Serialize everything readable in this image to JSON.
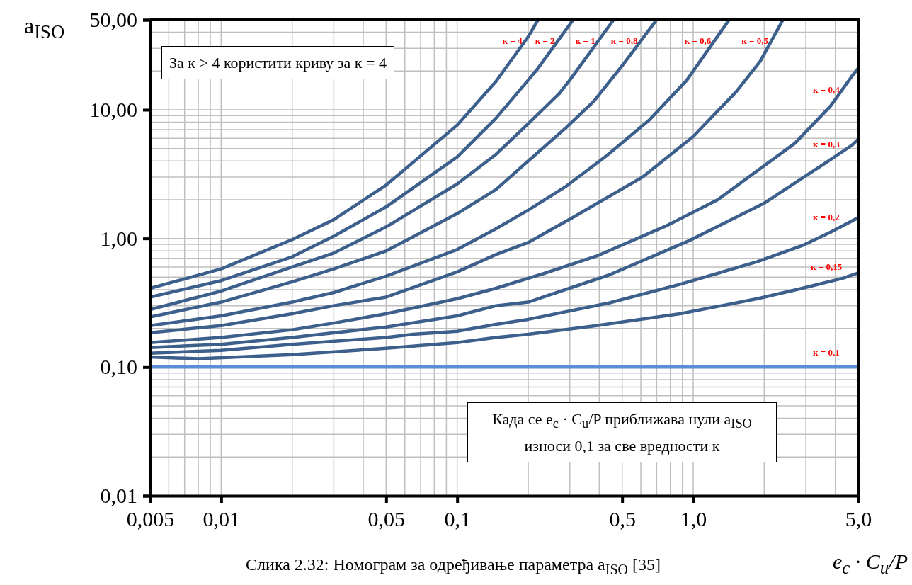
{
  "chart_data": {
    "type": "line",
    "xlabel": "e$_{c}$ · C$_{u}$/P",
    "ylabel": "a$_{ISO}$",
    "log": "xy",
    "grid": true,
    "xlim": [
      0.005,
      5
    ],
    "ylim": [
      0.01,
      50
    ],
    "xticks": [
      {
        "value": 0.005,
        "label": "0,005"
      },
      {
        "value": 0.01,
        "label": "0,01"
      },
      {
        "value": 0.05,
        "label": "0,05"
      },
      {
        "value": 0.1,
        "label": "0,1"
      },
      {
        "value": 0.5,
        "label": "0,5"
      },
      {
        "value": 1,
        "label": "1,0"
      },
      {
        "value": 5,
        "label": "5,0"
      }
    ],
    "yticks": [
      {
        "value": 0.01,
        "label": "0,01"
      },
      {
        "value": 0.1,
        "label": "0,10"
      },
      {
        "value": 1,
        "label": "1,00"
      },
      {
        "value": 10,
        "label": "10,00"
      },
      {
        "value": 50,
        "label": "50,00"
      }
    ],
    "series": [
      {
        "name": "к = 4",
        "color": "#3c5f8c",
        "x": [
          0.005,
          0.01,
          0.02,
          0.03,
          0.05,
          0.1,
          0.146,
          0.2,
          0.22
        ],
        "values": [
          0.41,
          0.58,
          0.98,
          1.4,
          2.6,
          7.6,
          16.6,
          37,
          50
        ]
      },
      {
        "name": "к = 2",
        "color": "#3c5f8c",
        "x": [
          0.005,
          0.01,
          0.02,
          0.03,
          0.05,
          0.1,
          0.146,
          0.2,
          0.22,
          0.31
        ],
        "values": [
          0.35,
          0.47,
          0.72,
          1.04,
          1.76,
          4.3,
          8.6,
          17,
          21,
          50
        ]
      },
      {
        "name": "к = 1",
        "color": "#3c5f8c",
        "x": [
          0.005,
          0.01,
          0.02,
          0.03,
          0.05,
          0.1,
          0.146,
          0.2,
          0.27,
          0.3,
          0.46
        ],
        "values": [
          0.28,
          0.39,
          0.6,
          0.77,
          1.23,
          2.65,
          4.5,
          7.8,
          13.3,
          17,
          50
        ]
      },
      {
        "name": "к = 0,8",
        "color": "#3c5f8c",
        "x": [
          0.005,
          0.01,
          0.02,
          0.03,
          0.05,
          0.1,
          0.146,
          0.2,
          0.29,
          0.38,
          0.5,
          0.7
        ],
        "values": [
          0.245,
          0.32,
          0.46,
          0.58,
          0.8,
          1.56,
          2.4,
          4.0,
          7.3,
          11.7,
          22,
          50
        ]
      },
      {
        "name": "к = 0,6",
        "color": "#3c5f8c",
        "x": [
          0.005,
          0.01,
          0.02,
          0.03,
          0.05,
          0.1,
          0.146,
          0.2,
          0.29,
          0.43,
          0.65,
          0.94,
          1.42
        ],
        "values": [
          0.21,
          0.25,
          0.32,
          0.38,
          0.51,
          0.82,
          1.19,
          1.66,
          2.55,
          4.4,
          8.3,
          17,
          50
        ]
      },
      {
        "name": "к = 0,5",
        "color": "#3c5f8c",
        "x": [
          0.005,
          0.01,
          0.02,
          0.03,
          0.05,
          0.1,
          0.146,
          0.2,
          0.31,
          0.61,
          1,
          1.52,
          1.92,
          2.4
        ],
        "values": [
          0.185,
          0.21,
          0.26,
          0.3,
          0.35,
          0.55,
          0.75,
          0.93,
          1.46,
          3.0,
          6.2,
          13.8,
          23.7,
          50
        ]
      },
      {
        "name": "к = 0,4",
        "color": "#3c5f8c",
        "x": [
          0.005,
          0.01,
          0.02,
          0.03,
          0.05,
          0.1,
          0.146,
          0.23,
          0.39,
          0.76,
          1.27,
          2.7,
          3.82,
          4.7,
          5
        ],
        "values": [
          0.155,
          0.17,
          0.195,
          0.22,
          0.26,
          0.34,
          0.41,
          0.53,
          0.73,
          1.24,
          2.0,
          5.5,
          10.7,
          18.2,
          21
        ]
      },
      {
        "name": "к = 0,3",
        "color": "#3c5f8c",
        "x": [
          0.005,
          0.01,
          0.02,
          0.05,
          0.1,
          0.146,
          0.2,
          0.44,
          0.96,
          2,
          3.66,
          4.7,
          5
        ],
        "values": [
          0.142,
          0.15,
          0.17,
          0.205,
          0.25,
          0.3,
          0.32,
          0.52,
          0.96,
          1.88,
          3.9,
          5.3,
          5.9
        ]
      },
      {
        "name": "к = 0,2",
        "color": "#3c5f8c",
        "x": [
          0.005,
          0.01,
          0.02,
          0.05,
          0.065,
          0.1,
          0.146,
          0.2,
          0.44,
          0.88,
          1.87,
          2.9,
          3.82,
          5
        ],
        "values": [
          0.128,
          0.135,
          0.15,
          0.17,
          0.18,
          0.19,
          0.215,
          0.235,
          0.315,
          0.44,
          0.66,
          0.88,
          1.12,
          1.45
        ]
      },
      {
        "name": "к = 0,15",
        "color": "#3c5f8c",
        "x": [
          0.005,
          0.008,
          0.02,
          0.05,
          0.1,
          0.146,
          0.2,
          0.39,
          0.88,
          1.87,
          2.9,
          4.3,
          5
        ],
        "values": [
          0.12,
          0.116,
          0.125,
          0.14,
          0.155,
          0.17,
          0.18,
          0.21,
          0.26,
          0.34,
          0.41,
          0.49,
          0.54
        ]
      },
      {
        "name": "к = 0,1",
        "color": "#5b8ed6",
        "x": [
          0.005,
          5
        ],
        "values": [
          0.1,
          0.1
        ]
      }
    ],
    "annotations": [
      "За к > 4 користити криву за к = 4",
      "Када се e$_{c}$ · C$_{u}$/P приближава нули a$_{ISO}$ износи 0,1 за све вредности к",
      "Слика 2.32: Номограм за одређивање параметра a$_{ISO}$ [35]"
    ]
  }
}
